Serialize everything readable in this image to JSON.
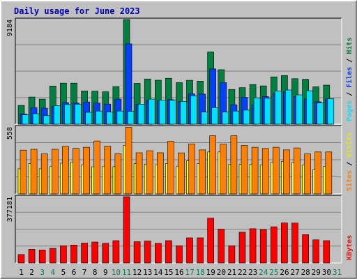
{
  "chart_data": [
    {
      "type": "bar",
      "title": "Daily usage for June 2023",
      "categories": [
        "1",
        "2",
        "3",
        "4",
        "5",
        "6",
        "7",
        "8",
        "9",
        "10",
        "11",
        "12",
        "13",
        "14",
        "15",
        "16",
        "17",
        "18",
        "19",
        "20",
        "21",
        "22",
        "23",
        "24",
        "25",
        "26",
        "27",
        "28",
        "29",
        "30",
        "31"
      ],
      "weekend_days": [
        3,
        4,
        10,
        11,
        17,
        18,
        24,
        25,
        31
      ],
      "ymax_label": "9184",
      "ylim": [
        0,
        9184
      ],
      "series": [
        {
          "name": "Hits",
          "color": "#008040",
          "values": [
            1650,
            2380,
            2200,
            3350,
            3600,
            3600,
            2920,
            2900,
            2840,
            3300,
            9184,
            3580,
            3970,
            3860,
            4030,
            3640,
            3850,
            3770,
            6350,
            4780,
            3050,
            3200,
            3480,
            3360,
            4150,
            4270,
            3990,
            3940,
            3280,
            3430,
            null
          ]
        },
        {
          "name": "Files",
          "color": "#0040ff",
          "values": [
            900,
            1440,
            1400,
            1550,
            1900,
            1850,
            1950,
            1850,
            1750,
            2200,
            7050,
            1760,
            2050,
            2050,
            2150,
            1990,
            2660,
            2640,
            4850,
            3640,
            1700,
            2350,
            1700,
            2420,
            2650,
            2830,
            2430,
            2230,
            1960,
            2230,
            null
          ]
        },
        {
          "name": "Pages",
          "color": "#00e0ff",
          "values": [
            820,
            920,
            750,
            1620,
            1720,
            1750,
            1040,
            1150,
            1060,
            1150,
            1120,
            1760,
            2200,
            2100,
            2100,
            2000,
            2500,
            1060,
            1450,
            1060,
            1150,
            1230,
            2300,
            2270,
            2900,
            3000,
            2570,
            2930,
            1860,
            2230,
            null
          ]
        }
      ]
    },
    {
      "type": "bar",
      "categories": [
        "1",
        "2",
        "3",
        "4",
        "5",
        "6",
        "7",
        "8",
        "9",
        "10",
        "11",
        "12",
        "13",
        "14",
        "15",
        "16",
        "17",
        "18",
        "19",
        "20",
        "21",
        "22",
        "23",
        "24",
        "25",
        "26",
        "27",
        "28",
        "29",
        "30",
        "31"
      ],
      "ymax_label": "558",
      "ylim": [
        0,
        558
      ],
      "series": [
        {
          "name": "Visits",
          "color": "#ffff00",
          "values": [
            210,
            252,
            210,
            228,
            256,
            265,
            241,
            226,
            228,
            227,
            405,
            252,
            248,
            243,
            253,
            228,
            275,
            253,
            350,
            350,
            248,
            248,
            246,
            240,
            262,
            270,
            262,
            241,
            204,
            229,
            null
          ]
        },
        {
          "name": "Sites",
          "color": "#ff8000",
          "values": [
            365,
            372,
            333,
            372,
            397,
            380,
            389,
            441,
            398,
            335,
            555,
            343,
            360,
            343,
            438,
            342,
            416,
            367,
            484,
            414,
            484,
            404,
            389,
            379,
            389,
            367,
            383,
            333,
            350,
            350,
            null
          ]
        }
      ]
    },
    {
      "type": "bar",
      "categories": [
        "1",
        "2",
        "3",
        "4",
        "5",
        "6",
        "7",
        "8",
        "9",
        "10",
        "11",
        "12",
        "13",
        "14",
        "15",
        "16",
        "17",
        "18",
        "19",
        "20",
        "21",
        "22",
        "23",
        "24",
        "25",
        "26",
        "27",
        "28",
        "29",
        "30",
        "31"
      ],
      "ymax_label": "377181",
      "ylim": [
        0,
        377181
      ],
      "series": [
        {
          "name": "KBytes",
          "color": "#ff0000",
          "values": [
            48000,
            78000,
            74000,
            83000,
            98000,
            102000,
            113000,
            119000,
            112000,
            127000,
            377000,
            121000,
            125000,
            112000,
            127000,
            98000,
            143000,
            143000,
            255000,
            193000,
            98000,
            175000,
            195000,
            190000,
            206000,
            228000,
            227000,
            161000,
            132000,
            127000,
            null
          ]
        }
      ]
    }
  ],
  "colors": {
    "plot_bg": "#c0c0c0",
    "gridline": "#808080",
    "weekend_label": "#00805c",
    "weekday_label": "#000000"
  }
}
